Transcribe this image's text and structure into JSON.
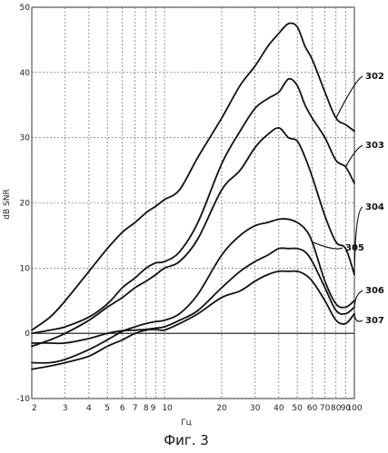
{
  "chart_data": {
    "type": "line",
    "xscale": "log",
    "xlim": [
      2,
      100
    ],
    "ylim": [
      -10,
      50
    ],
    "xlabel": "Гц",
    "ylabel": "dB SNR",
    "x_tick_labels": [
      {
        "value": 2,
        "label": "2"
      },
      {
        "value": 3,
        "label": "3"
      },
      {
        "value": 4,
        "label": "4"
      },
      {
        "value": 5,
        "label": "5"
      },
      {
        "value": 6,
        "label": "6"
      },
      {
        "value": 7,
        "label": "7"
      },
      {
        "value": 8,
        "label": "8"
      },
      {
        "value": 9,
        "label": "9"
      },
      {
        "value": 10,
        "label": "10"
      },
      {
        "value": 20,
        "label": "20"
      },
      {
        "value": 30,
        "label": "30"
      },
      {
        "value": 40,
        "label": "40"
      },
      {
        "value": 50,
        "label": "50"
      },
      {
        "value": 60,
        "label": "60"
      },
      {
        "value": 70,
        "label": "70"
      },
      {
        "value": 80,
        "label": "80"
      },
      {
        "value": 90,
        "label": "90"
      },
      {
        "value": 100,
        "label": "100"
      }
    ],
    "y_tick_labels": [
      {
        "value": -10,
        "label": "-10"
      },
      {
        "value": 0,
        "label": "0"
      },
      {
        "value": 10,
        "label": "10"
      },
      {
        "value": 20,
        "label": "20"
      },
      {
        "value": 30,
        "label": "30"
      },
      {
        "value": 40,
        "label": "40"
      },
      {
        "value": 50,
        "label": "50"
      }
    ],
    "grid": true,
    "zero_line": true,
    "series": [
      {
        "ref": "302",
        "x": [
          2,
          2.5,
          3,
          4,
          5,
          6,
          7,
          8,
          9,
          10,
          12,
          15,
          20,
          25,
          30,
          35,
          40,
          45,
          50,
          55,
          60,
          70,
          80,
          90,
          100
        ],
        "y": [
          0.5,
          2.5,
          5,
          9.5,
          13,
          15.5,
          17,
          18.5,
          19.5,
          20.5,
          22,
          27,
          33,
          38,
          41,
          44,
          46,
          47.5,
          47,
          44,
          42,
          37,
          33,
          32,
          31
        ]
      },
      {
        "ref": "303",
        "x": [
          2,
          2.5,
          3,
          4,
          5,
          6,
          7,
          8,
          9,
          10,
          12,
          15,
          20,
          25,
          30,
          35,
          40,
          45,
          50,
          55,
          60,
          70,
          80,
          90,
          100
        ],
        "y": [
          0,
          0.5,
          1,
          2.5,
          4.5,
          7,
          8.5,
          10,
          10.8,
          11,
          12.5,
          17,
          26,
          31,
          34.5,
          36,
          37,
          39,
          38,
          35,
          33,
          30,
          26.5,
          25.5,
          23
        ]
      },
      {
        "ref": "304",
        "x": [
          2,
          2.5,
          3,
          4,
          5,
          6,
          7,
          8,
          9,
          10,
          12,
          15,
          20,
          25,
          30,
          35,
          40,
          45,
          50,
          55,
          60,
          70,
          80,
          90,
          100
        ],
        "y": [
          -2,
          -1,
          0,
          2,
          4,
          5.5,
          7,
          8,
          9,
          10,
          11,
          14.5,
          22,
          25,
          28.5,
          30.5,
          31.5,
          30,
          29.5,
          27,
          24,
          18,
          14,
          13,
          9
        ]
      },
      {
        "ref": "305",
        "x": [
          2,
          2.5,
          3,
          4,
          5,
          6,
          7,
          8,
          9,
          10,
          12,
          15,
          20,
          25,
          30,
          35,
          40,
          45,
          50,
          55,
          60,
          70,
          80,
          90,
          100
        ],
        "y": [
          -4.5,
          -4.5,
          -4,
          -2.5,
          -1,
          0.3,
          1,
          1.5,
          1.8,
          2,
          3,
          6,
          12,
          15,
          16.5,
          17,
          17.5,
          17.5,
          17,
          16,
          14,
          8,
          4.5,
          4,
          5
        ]
      },
      {
        "ref": "306",
        "x": [
          2,
          2.5,
          3,
          4,
          5,
          6,
          7,
          8,
          9,
          10,
          12,
          15,
          20,
          25,
          30,
          35,
          40,
          45,
          50,
          55,
          60,
          70,
          80,
          90,
          100
        ],
        "y": [
          -1.5,
          -1.5,
          -1.5,
          -0.8,
          0,
          0.4,
          0.5,
          0.6,
          0.8,
          1,
          2,
          3.5,
          7,
          9.5,
          11,
          12,
          13,
          13,
          13,
          12.5,
          11,
          7,
          3.5,
          3,
          4
        ]
      },
      {
        "ref": "307",
        "x": [
          2,
          2.5,
          3,
          4,
          5,
          6,
          7,
          8,
          9,
          10,
          12,
          15,
          20,
          25,
          30,
          35,
          40,
          45,
          50,
          55,
          60,
          70,
          80,
          90,
          100
        ],
        "y": [
          -5.5,
          -5,
          -4.5,
          -3.5,
          -2,
          -1,
          0,
          0.5,
          0.6,
          0.5,
          1.5,
          3,
          5.5,
          6.5,
          8,
          9,
          9.5,
          9.5,
          9.5,
          9,
          8,
          5,
          2,
          1.5,
          3
        ]
      }
    ],
    "series_refs": [
      {
        "ref": "302",
        "label": "302"
      },
      {
        "ref": "303",
        "label": "303"
      },
      {
        "ref": "304",
        "label": "304"
      },
      {
        "ref": "305",
        "label": "305"
      },
      {
        "ref": "306",
        "label": "306"
      },
      {
        "ref": "307",
        "label": "307"
      }
    ]
  },
  "caption": "Фиг. 3",
  "colors": {
    "line": "#111111",
    "grid": "#555555",
    "background": "#ffffff"
  }
}
